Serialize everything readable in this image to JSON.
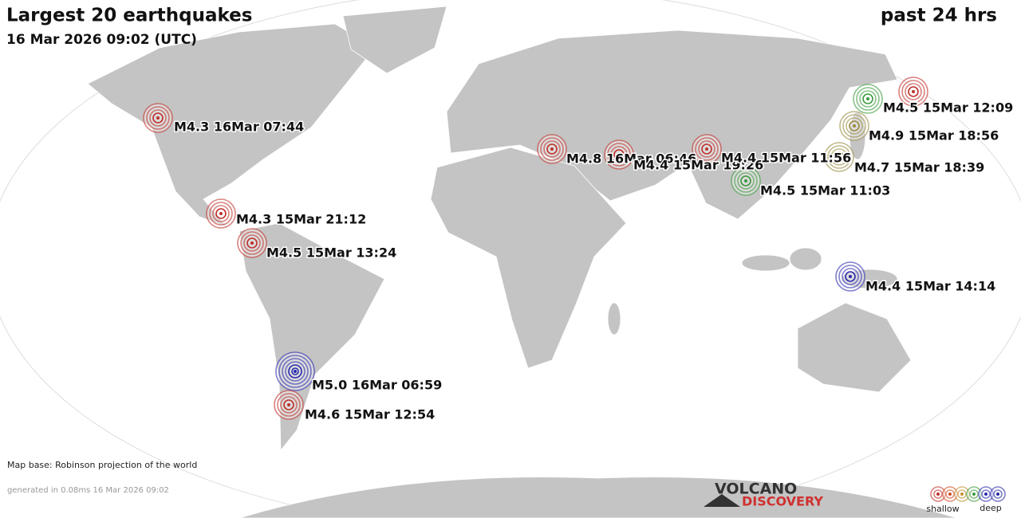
{
  "header": {
    "title": "Largest 20 earthquakes",
    "subtitle": "16 Mar 2026 09:02 (UTC)",
    "period": "past 24 hrs"
  },
  "quakes": [
    {
      "label": "M4.3 16Mar 07:44"
    },
    {
      "label": "M4.3 15Mar 21:12"
    },
    {
      "label": "M4.5 15Mar 13:24"
    },
    {
      "label": "M5.0 16Mar 06:59"
    },
    {
      "label": "M4.6 15Mar 12:54"
    },
    {
      "label": "M4.8 16Mar 06:46"
    },
    {
      "label": "M4.4 15Mar 19:26"
    },
    {
      "label": "M4.4 15Mar 11:56"
    },
    {
      "label": "M4.5 15Mar 11:03"
    },
    {
      "label": "M4.5 15Mar 12:09"
    },
    {
      "label": "M4.9 15Mar 18:56"
    },
    {
      "label": "M4.7 15Mar 18:39"
    },
    {
      "label": "M4.4 15Mar 14:14"
    }
  ],
  "footer": {
    "map_base": "Map base: Robinson projection of the world",
    "generated": "generated in 0.08ms 16 Mar 2026 09:02",
    "logo_top": "VOLCANO",
    "logo_bottom": "DISCOVERY",
    "legend_shallow": "shallow",
    "legend_deep": "deep"
  }
}
